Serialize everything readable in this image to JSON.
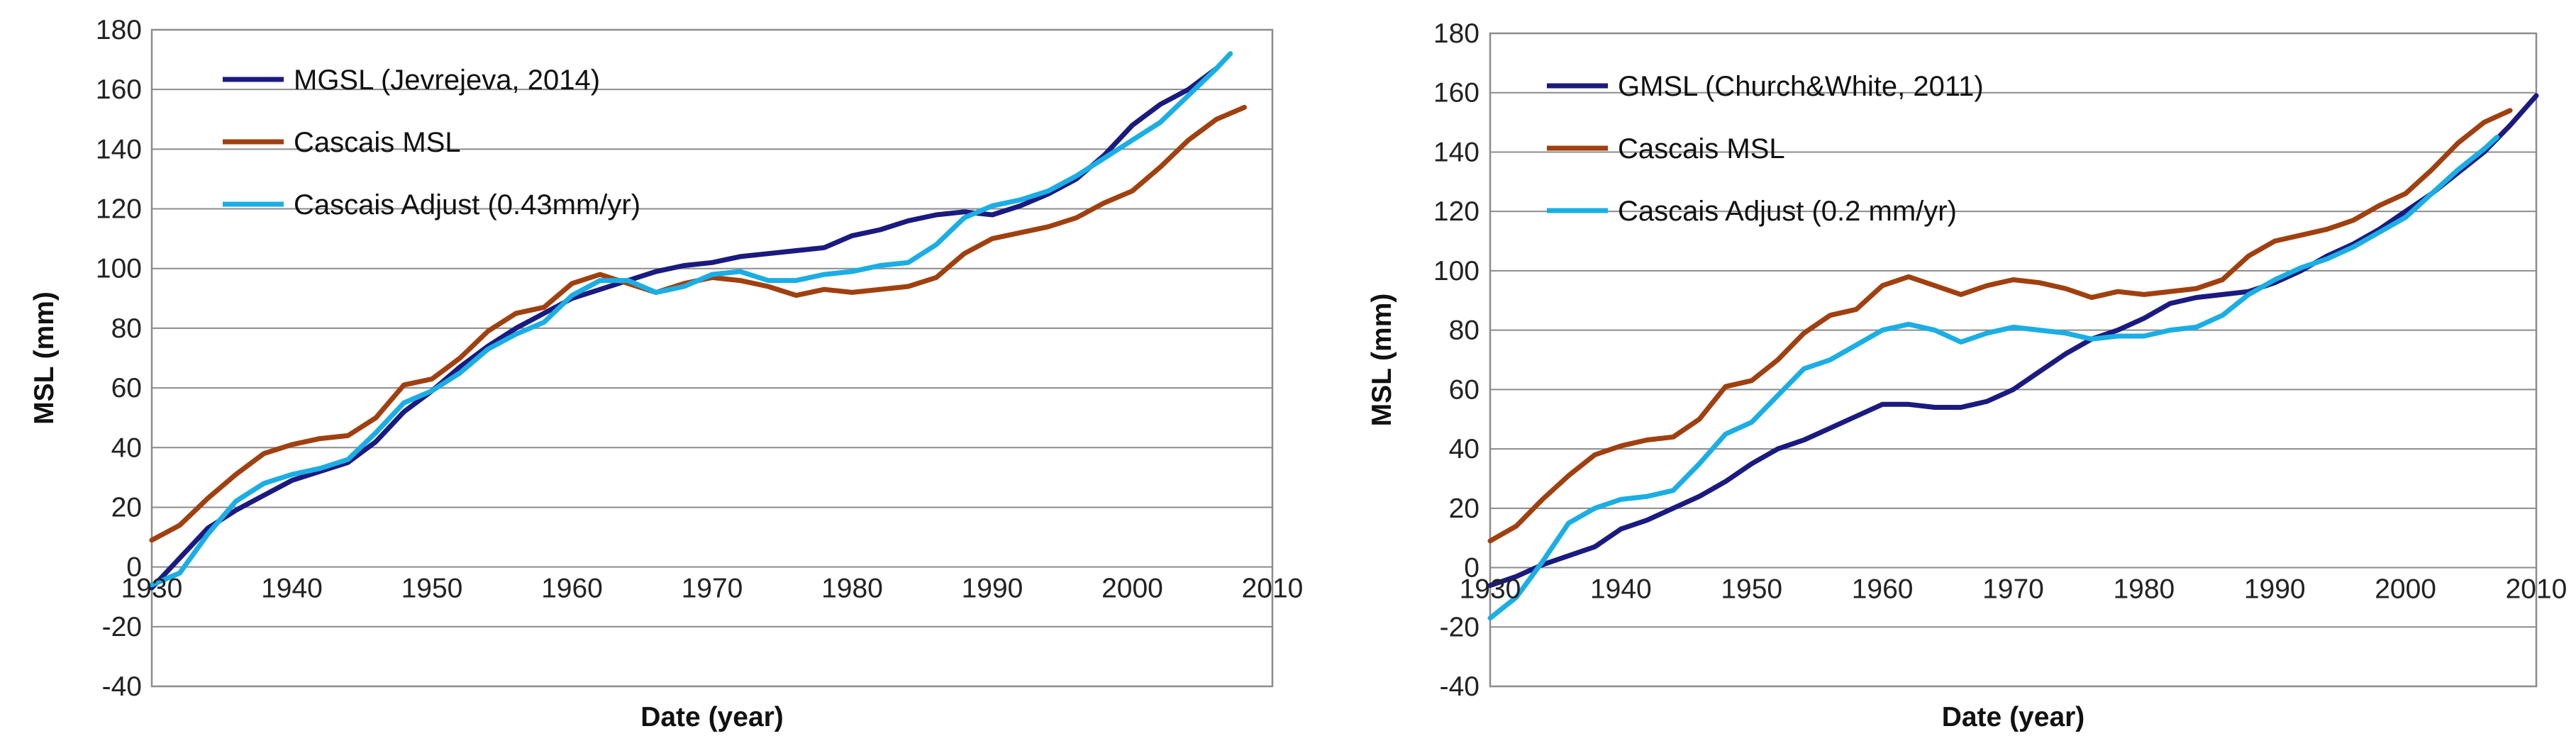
{
  "chart_data": [
    {
      "type": "line",
      "title": "",
      "xlabel": "Date (year)",
      "ylabel": "MSL (mm)",
      "xlim": [
        1930,
        2010
      ],
      "ylim": [
        -40,
        180
      ],
      "xticks": [
        1930,
        1940,
        1950,
        1960,
        1970,
        1980,
        1990,
        2000,
        2010
      ],
      "yticks": [
        -40,
        -20,
        0,
        20,
        40,
        60,
        80,
        100,
        120,
        140,
        160,
        180
      ],
      "legend_position": "top-left",
      "grid": true,
      "series": [
        {
          "name": "MGSL (Jevrejeva, 2014)",
          "color": "#1a1a80",
          "x": [
            1930,
            1932,
            1934,
            1936,
            1938,
            1940,
            1942,
            1944,
            1946,
            1948,
            1950,
            1952,
            1954,
            1956,
            1958,
            1960,
            1962,
            1964,
            1966,
            1968,
            1970,
            1972,
            1974,
            1976,
            1978,
            1980,
            1982,
            1984,
            1986,
            1988,
            1990,
            1992,
            1994,
            1996,
            1998,
            2000,
            2002,
            2004,
            2006
          ],
          "y": [
            -7,
            3,
            13,
            19,
            24,
            29,
            32,
            35,
            42,
            52,
            59,
            67,
            74,
            80,
            85,
            90,
            93,
            96,
            99,
            101,
            102,
            104,
            105,
            106,
            107,
            111,
            113,
            116,
            118,
            119,
            118,
            121,
            125,
            130,
            138,
            148,
            155,
            160,
            167
          ]
        },
        {
          "name": "Cascais MSL",
          "color": "#a0400f",
          "x": [
            1930,
            1932,
            1934,
            1936,
            1938,
            1940,
            1942,
            1944,
            1946,
            1948,
            1950,
            1952,
            1954,
            1956,
            1958,
            1960,
            1962,
            1964,
            1966,
            1968,
            1970,
            1972,
            1974,
            1976,
            1978,
            1980,
            1982,
            1984,
            1986,
            1988,
            1990,
            1992,
            1994,
            1996,
            1998,
            2000,
            2002,
            2004,
            2006,
            2008
          ],
          "y": [
            9,
            14,
            23,
            31,
            38,
            41,
            43,
            44,
            50,
            61,
            63,
            70,
            79,
            85,
            87,
            95,
            98,
            95,
            92,
            95,
            97,
            96,
            94,
            91,
            93,
            92,
            93,
            94,
            97,
            105,
            110,
            112,
            114,
            117,
            122,
            126,
            134,
            143,
            150,
            154
          ]
        },
        {
          "name": "Cascais Adjust (0.43mm/yr)",
          "color": "#1aaee5",
          "x": [
            1930,
            1932,
            1934,
            1936,
            1938,
            1940,
            1942,
            1944,
            1946,
            1948,
            1950,
            1952,
            1954,
            1956,
            1958,
            1960,
            1962,
            1964,
            1966,
            1968,
            1970,
            1972,
            1974,
            1976,
            1978,
            1980,
            1982,
            1984,
            1986,
            1988,
            1990,
            1992,
            1994,
            1996,
            1998,
            2000,
            2002,
            2004,
            2006,
            2007
          ],
          "y": [
            -6,
            -2,
            11,
            22,
            28,
            31,
            33,
            36,
            45,
            55,
            59,
            65,
            73,
            78,
            82,
            91,
            96,
            96,
            92,
            94,
            98,
            99,
            96,
            96,
            98,
            99,
            101,
            102,
            108,
            117,
            121,
            123,
            126,
            131,
            137,
            143,
            149,
            158,
            167,
            172
          ]
        }
      ]
    },
    {
      "type": "line",
      "title": "",
      "xlabel": "Date (year)",
      "ylabel": "MSL (mm)",
      "xlim": [
        1930,
        2010
      ],
      "ylim": [
        -40,
        180
      ],
      "xticks": [
        1930,
        1940,
        1950,
        1960,
        1970,
        1980,
        1990,
        2000,
        2010
      ],
      "yticks": [
        -40,
        -20,
        0,
        20,
        40,
        60,
        80,
        100,
        120,
        140,
        160,
        180
      ],
      "legend_position": "top-left",
      "grid": true,
      "series": [
        {
          "name": "GMSL (Church&White, 2011)",
          "color": "#1a1a80",
          "x": [
            1930,
            1932,
            1934,
            1936,
            1938,
            1940,
            1942,
            1944,
            1946,
            1948,
            1950,
            1952,
            1954,
            1956,
            1958,
            1960,
            1962,
            1964,
            1966,
            1968,
            1970,
            1972,
            1974,
            1976,
            1978,
            1980,
            1982,
            1984,
            1986,
            1988,
            1990,
            1992,
            1994,
            1996,
            1998,
            2000,
            2002,
            2004,
            2006,
            2008,
            2010
          ],
          "y": [
            -6,
            -3,
            1,
            4,
            7,
            13,
            16,
            20,
            24,
            29,
            35,
            40,
            43,
            47,
            51,
            55,
            55,
            54,
            54,
            56,
            60,
            66,
            72,
            77,
            80,
            84,
            89,
            91,
            92,
            93,
            96,
            100,
            105,
            109,
            114,
            120,
            126,
            133,
            140,
            149,
            159
          ]
        },
        {
          "name": "Cascais MSL",
          "color": "#a0400f",
          "x": [
            1930,
            1932,
            1934,
            1936,
            1938,
            1940,
            1942,
            1944,
            1946,
            1948,
            1950,
            1952,
            1954,
            1956,
            1958,
            1960,
            1962,
            1964,
            1966,
            1968,
            1970,
            1972,
            1974,
            1976,
            1978,
            1980,
            1982,
            1984,
            1986,
            1988,
            1990,
            1992,
            1994,
            1996,
            1998,
            2000,
            2002,
            2004,
            2006,
            2008
          ],
          "y": [
            9,
            14,
            23,
            31,
            38,
            41,
            43,
            44,
            50,
            61,
            63,
            70,
            79,
            85,
            87,
            95,
            98,
            95,
            92,
            95,
            97,
            96,
            94,
            91,
            93,
            92,
            93,
            94,
            97,
            105,
            110,
            112,
            114,
            117,
            122,
            126,
            134,
            143,
            150,
            154
          ]
        },
        {
          "name": "Cascais Adjust (0.2 mm/yr)",
          "color": "#1aaee5",
          "x": [
            1930,
            1932,
            1934,
            1936,
            1938,
            1940,
            1942,
            1944,
            1946,
            1948,
            1950,
            1952,
            1954,
            1956,
            1958,
            1960,
            1962,
            1964,
            1966,
            1968,
            1970,
            1972,
            1974,
            1976,
            1978,
            1980,
            1982,
            1984,
            1986,
            1988,
            1990,
            1992,
            1994,
            1996,
            1998,
            2000,
            2002,
            2004,
            2006,
            2007
          ],
          "y": [
            -17,
            -10,
            2,
            15,
            20,
            23,
            24,
            26,
            35,
            45,
            49,
            58,
            67,
            70,
            75,
            80,
            82,
            80,
            76,
            79,
            81,
            80,
            79,
            77,
            78,
            78,
            80,
            81,
            85,
            92,
            97,
            101,
            104,
            108,
            113,
            118,
            126,
            134,
            141,
            145
          ]
        }
      ]
    }
  ]
}
